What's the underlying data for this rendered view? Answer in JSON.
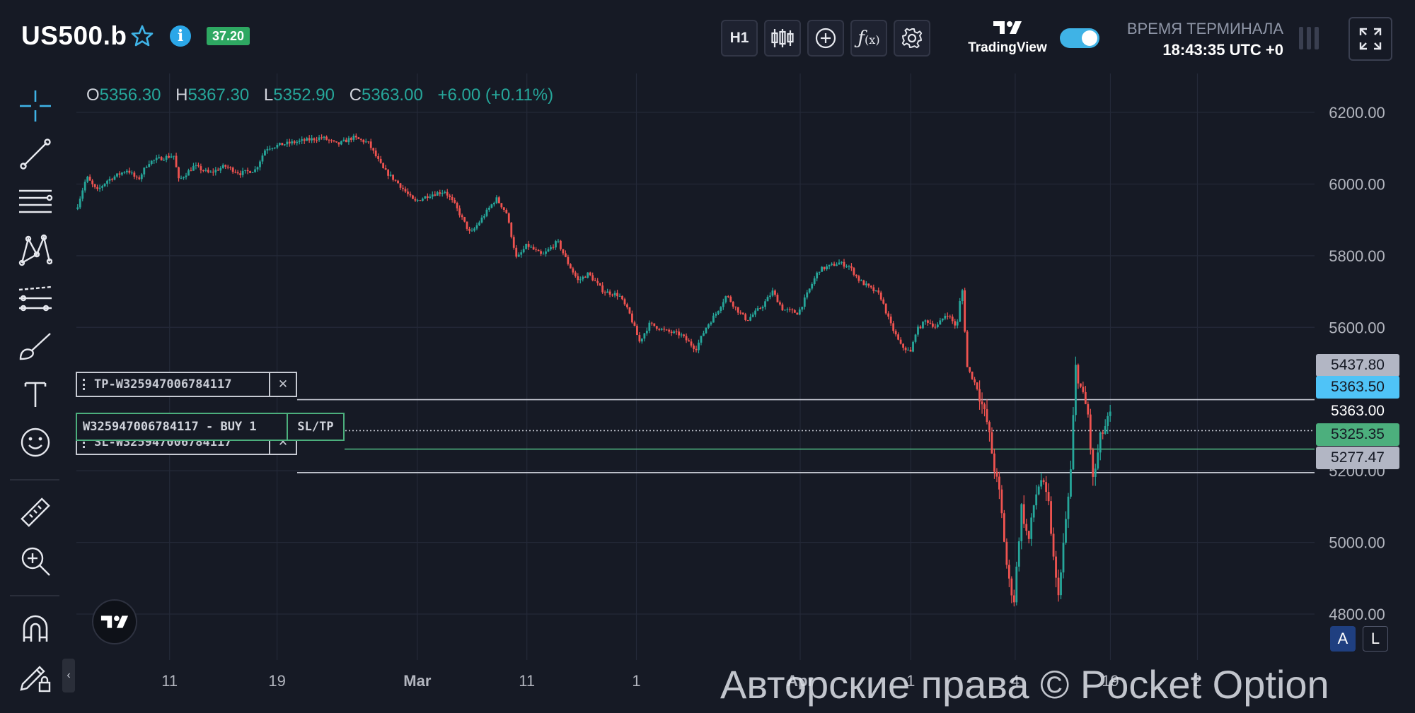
{
  "header": {
    "symbol": "US500.b",
    "spread": "37.20",
    "timeframe": "H1",
    "tradingview_logo_text": "TradingView",
    "terminal_time_label": "ВРЕМЯ ТЕРМИНАЛА",
    "terminal_time": "18:43:35 UTC +0",
    "toggle_on": true,
    "icons": [
      "star-icon",
      "info-icon",
      "candles-icon",
      "plus-circle-icon",
      "fx-icon",
      "gear-icon",
      "fullscreen-icon"
    ]
  },
  "toolbar": {
    "tools": [
      "crosshair-icon",
      "trendline-icon",
      "fib-lines-icon",
      "pattern-icon",
      "forecast-icon",
      "brush-icon",
      "text-icon",
      "emoji-icon",
      "ruler-icon",
      "zoom-in-icon",
      "magnet-icon",
      "lock-pencil-icon"
    ],
    "collapse_glyph": "‹"
  },
  "ohlc": {
    "o_label": "O",
    "o": "5356.30",
    "h_label": "H",
    "h": "5367.30",
    "l_label": "L",
    "l": "5352.90",
    "c_label": "C",
    "c": "5363.00",
    "change": "+6.00 (+0.11%)"
  },
  "trade": {
    "tp_label": "TP-W325947006784117",
    "sl_label": "SL-W325947006784117",
    "position_label": "W325947006784117 - BUY 1",
    "sltp_button": "SL/TP",
    "close_glyph": "✕"
  },
  "price_tags": {
    "tp": "5437.80",
    "current": "5363.50",
    "last": "5363.00",
    "entry": "5325.35",
    "sl": "5277.47"
  },
  "scale_buttons": {
    "auto": "A",
    "log": "L"
  },
  "watermark": "Авторские права © Pocket Option",
  "colors": {
    "background": "#161a25",
    "up": "#26a69a",
    "down": "#ef5350",
    "spread_badge": "#2ea862",
    "accent": "#4fc3f7",
    "entry": "#4caf7d"
  },
  "chart_data": {
    "type": "candlestick",
    "symbol": "US500.b",
    "timeframe": "H1",
    "yticks": [
      "6200.00",
      "6000.00",
      "5800.00",
      "5600.00",
      "5200.00",
      "5000.00",
      "4800.00"
    ],
    "ytick_values": [
      6200,
      6000,
      5800,
      5600,
      5200,
      5000,
      4800
    ],
    "ylim": [
      4670,
      6305
    ],
    "xticks": [
      "11",
      "19",
      "Mar",
      "11",
      "1",
      "Apr",
      "1",
      "4",
      "19",
      "2"
    ],
    "xlim": [
      0,
      100
    ],
    "xtick_positions": [
      9.1,
      19.6,
      33.3,
      44.0,
      54.7,
      70.7,
      81.5,
      91.7,
      101.0,
      109.5
    ],
    "grid": true,
    "horizontal_levels": {
      "take_profit": 5437.8,
      "current_price": 5363.0,
      "entry": 5325.35,
      "stop_loss": 5277.47
    },
    "price_path": [
      [
        0,
        5930
      ],
      [
        1,
        6020
      ],
      [
        2,
        5980
      ],
      [
        3,
        6010
      ],
      [
        5,
        6040
      ],
      [
        6,
        6010
      ],
      [
        7,
        6060
      ],
      [
        8,
        6070
      ],
      [
        9.5,
        6080
      ],
      [
        10,
        6010
      ],
      [
        11.5,
        6050
      ],
      [
        13,
        6030
      ],
      [
        14.5,
        6050
      ],
      [
        16,
        6030
      ],
      [
        17.5,
        6040
      ],
      [
        18.5,
        6100
      ],
      [
        20,
        6110
      ],
      [
        22,
        6120
      ],
      [
        24,
        6130
      ],
      [
        25.5,
        6110
      ],
      [
        27,
        6130
      ],
      [
        28.5,
        6115
      ],
      [
        30,
        6040
      ],
      [
        31.5,
        6000
      ],
      [
        33,
        5950
      ],
      [
        34.5,
        5970
      ],
      [
        36,
        5980
      ],
      [
        37,
        5940
      ],
      [
        38.5,
        5860
      ],
      [
        39.5,
        5900
      ],
      [
        41,
        5960
      ],
      [
        42,
        5920
      ],
      [
        43,
        5790
      ],
      [
        44,
        5830
      ],
      [
        45.5,
        5800
      ],
      [
        47,
        5840
      ],
      [
        48,
        5780
      ],
      [
        49,
        5730
      ],
      [
        50,
        5750
      ],
      [
        51.5,
        5700
      ],
      [
        53,
        5690
      ],
      [
        54,
        5640
      ],
      [
        55,
        5560
      ],
      [
        56,
        5610
      ],
      [
        57.5,
        5590
      ],
      [
        59,
        5580
      ],
      [
        60.5,
        5540
      ],
      [
        61.5,
        5600
      ],
      [
        62.5,
        5640
      ],
      [
        63.5,
        5690
      ],
      [
        64.5,
        5650
      ],
      [
        65.5,
        5620
      ],
      [
        67,
        5660
      ],
      [
        68,
        5700
      ],
      [
        69,
        5650
      ],
      [
        70.5,
        5640
      ],
      [
        71.5,
        5700
      ],
      [
        72.5,
        5760
      ],
      [
        73.5,
        5770
      ],
      [
        74.5,
        5780
      ],
      [
        75.5,
        5770
      ],
      [
        76.5,
        5730
      ],
      [
        77.5,
        5710
      ],
      [
        78.5,
        5690
      ],
      [
        79.5,
        5610
      ],
      [
        80.5,
        5550
      ],
      [
        81.5,
        5530
      ],
      [
        82,
        5590
      ],
      [
        83,
        5620
      ],
      [
        84,
        5600
      ],
      [
        85,
        5640
      ],
      [
        86,
        5600
      ],
      [
        86.5,
        5720
      ],
      [
        87,
        5490
      ],
      [
        88,
        5430
      ],
      [
        89,
        5330
      ],
      [
        89.7,
        5200
      ],
      [
        90.2,
        5130
      ],
      [
        91,
        4900
      ],
      [
        91.6,
        4840
      ],
      [
        92.3,
        5100
      ],
      [
        93,
        5000
      ],
      [
        93.6,
        5120
      ],
      [
        94.2,
        5180
      ],
      [
        95,
        5100
      ],
      [
        95.6,
        4900
      ],
      [
        96,
        4860
      ],
      [
        96.6,
        5050
      ],
      [
        97.1,
        5180
      ],
      [
        97.6,
        5490
      ],
      [
        98.1,
        5430
      ],
      [
        98.8,
        5360
      ],
      [
        99.3,
        5170
      ],
      [
        99.8,
        5250
      ],
      [
        100,
        5290
      ],
      [
        100.6,
        5330
      ],
      [
        101.1,
        5363
      ]
    ]
  }
}
